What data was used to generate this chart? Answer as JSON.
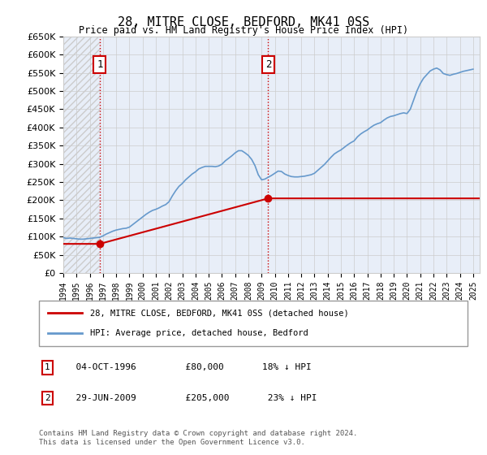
{
  "title": "28, MITRE CLOSE, BEDFORD, MK41 0SS",
  "subtitle": "Price paid vs. HM Land Registry's House Price Index (HPI)",
  "ylabel_prefix": "£",
  "ylim": [
    0,
    650000
  ],
  "yticks": [
    0,
    50000,
    100000,
    150000,
    200000,
    250000,
    300000,
    350000,
    400000,
    450000,
    500000,
    550000,
    600000,
    650000
  ],
  "xlim_start": 1994.0,
  "xlim_end": 2025.5,
  "xticks": [
    1994,
    1995,
    1996,
    1997,
    1998,
    1999,
    2000,
    2001,
    2002,
    2003,
    2004,
    2005,
    2006,
    2007,
    2008,
    2009,
    2010,
    2011,
    2012,
    2013,
    2014,
    2015,
    2016,
    2017,
    2018,
    2019,
    2020,
    2021,
    2022,
    2023,
    2024,
    2025
  ],
  "hpi_color": "#6699cc",
  "price_color": "#cc0000",
  "marker_color": "#cc0000",
  "vline_color": "#cc0000",
  "grid_color": "#cccccc",
  "bg_color": "#e8eef8",
  "plot_bg": "#e8eef8",
  "hatch_color": "#cccccc",
  "transactions": [
    {
      "id": 1,
      "date": "04-OCT-1996",
      "year": 1996.75,
      "price": 80000,
      "pct": "18%",
      "direction": "↓"
    },
    {
      "id": 2,
      "date": "29-JUN-2009",
      "year": 2009.5,
      "price": 205000,
      "pct": "23%",
      "direction": "↓"
    }
  ],
  "legend_line1": "28, MITRE CLOSE, BEDFORD, MK41 0SS (detached house)",
  "legend_line2": "HPI: Average price, detached house, Bedford",
  "footer": "Contains HM Land Registry data © Crown copyright and database right 2024.\nThis data is licensed under the Open Government Licence v3.0.",
  "hpi_data_x": [
    1994.0,
    1994.25,
    1994.5,
    1994.75,
    1995.0,
    1995.25,
    1995.5,
    1995.75,
    1996.0,
    1996.25,
    1996.5,
    1996.75,
    1997.0,
    1997.25,
    1997.5,
    1997.75,
    1998.0,
    1998.25,
    1998.5,
    1998.75,
    1999.0,
    1999.25,
    1999.5,
    1999.75,
    2000.0,
    2000.25,
    2000.5,
    2000.75,
    2001.0,
    2001.25,
    2001.5,
    2001.75,
    2002.0,
    2002.25,
    2002.5,
    2002.75,
    2003.0,
    2003.25,
    2003.5,
    2003.75,
    2004.0,
    2004.25,
    2004.5,
    2004.75,
    2005.0,
    2005.25,
    2005.5,
    2005.75,
    2006.0,
    2006.25,
    2006.5,
    2006.75,
    2007.0,
    2007.25,
    2007.5,
    2007.75,
    2008.0,
    2008.25,
    2008.5,
    2008.75,
    2009.0,
    2009.25,
    2009.5,
    2009.75,
    2010.0,
    2010.25,
    2010.5,
    2010.75,
    2011.0,
    2011.25,
    2011.5,
    2011.75,
    2012.0,
    2012.25,
    2012.5,
    2012.75,
    2013.0,
    2013.25,
    2013.5,
    2013.75,
    2014.0,
    2014.25,
    2014.5,
    2014.75,
    2015.0,
    2015.25,
    2015.5,
    2015.75,
    2016.0,
    2016.25,
    2016.5,
    2016.75,
    2017.0,
    2017.25,
    2017.5,
    2017.75,
    2018.0,
    2018.25,
    2018.5,
    2018.75,
    2019.0,
    2019.25,
    2019.5,
    2019.75,
    2020.0,
    2020.25,
    2020.5,
    2020.75,
    2021.0,
    2021.25,
    2021.5,
    2021.75,
    2022.0,
    2022.25,
    2022.5,
    2022.75,
    2023.0,
    2023.25,
    2023.5,
    2023.75,
    2024.0,
    2024.25,
    2024.5,
    2024.75,
    2025.0
  ],
  "hpi_data_y": [
    97000,
    95000,
    96000,
    95000,
    94000,
    93000,
    93000,
    94000,
    95000,
    96000,
    97000,
    98000,
    102000,
    107000,
    111000,
    115000,
    118000,
    120000,
    122000,
    123000,
    126000,
    133000,
    140000,
    147000,
    154000,
    161000,
    167000,
    172000,
    175000,
    179000,
    184000,
    188000,
    196000,
    212000,
    226000,
    238000,
    246000,
    256000,
    264000,
    272000,
    278000,
    286000,
    290000,
    293000,
    293000,
    293000,
    292000,
    294000,
    299000,
    308000,
    315000,
    322000,
    330000,
    336000,
    336000,
    330000,
    323000,
    312000,
    295000,
    270000,
    256000,
    258000,
    263000,
    268000,
    274000,
    280000,
    279000,
    272000,
    268000,
    265000,
    264000,
    264000,
    265000,
    266000,
    268000,
    270000,
    274000,
    282000,
    290000,
    298000,
    308000,
    318000,
    327000,
    333000,
    338000,
    345000,
    352000,
    358000,
    363000,
    374000,
    382000,
    388000,
    393000,
    400000,
    406000,
    410000,
    413000,
    420000,
    426000,
    430000,
    432000,
    435000,
    438000,
    440000,
    438000,
    450000,
    475000,
    500000,
    520000,
    535000,
    545000,
    555000,
    560000,
    563000,
    558000,
    548000,
    545000,
    543000,
    546000,
    548000,
    551000,
    554000,
    556000,
    558000,
    560000
  ],
  "price_data_x": [
    1994.0,
    1996.75,
    2009.5,
    2025.5
  ],
  "price_data_y": [
    80000,
    80000,
    205000,
    205000
  ]
}
